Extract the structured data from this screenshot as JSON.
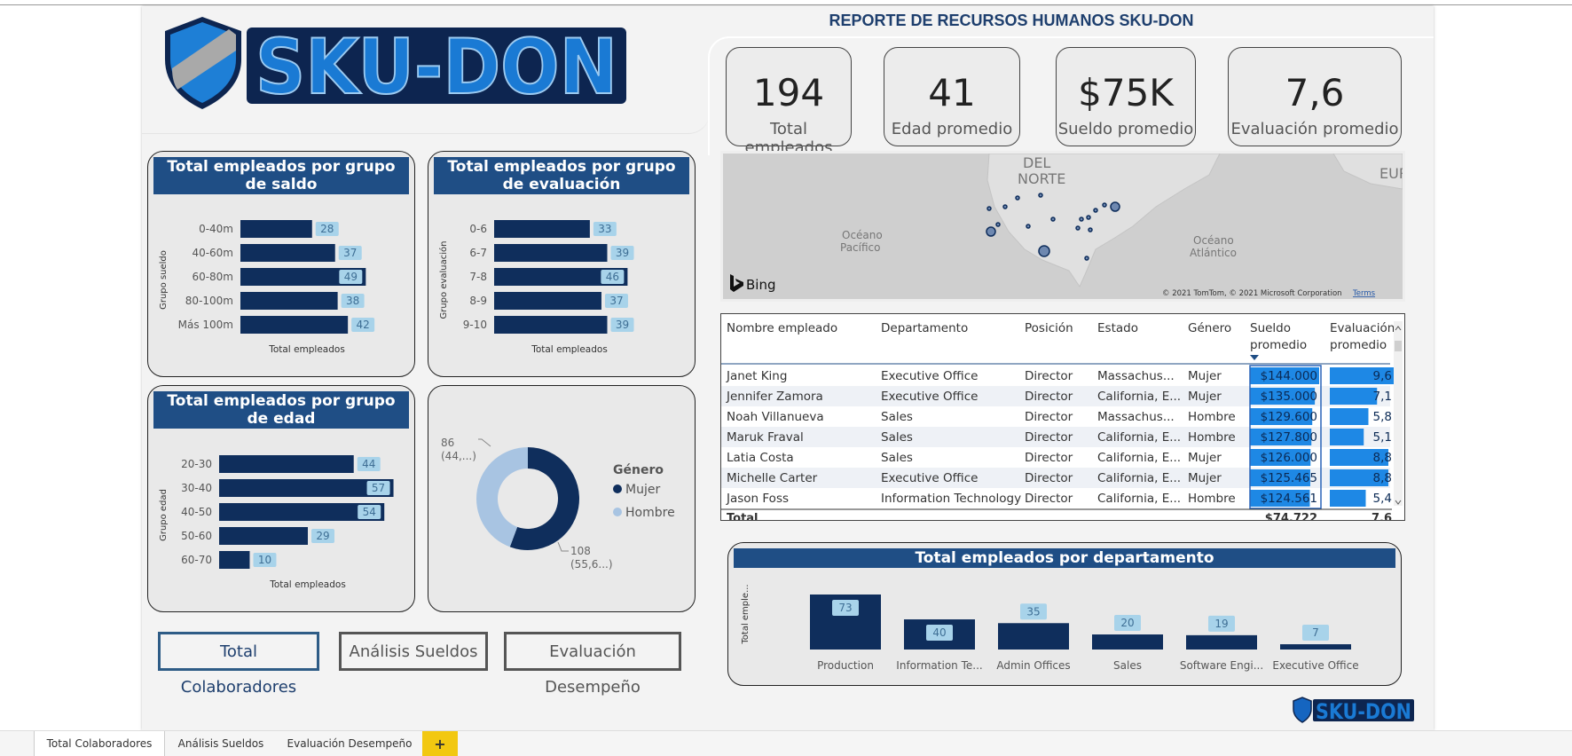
{
  "report": {
    "title": "REPORTE DE RECURSOS HUMANOS SKU-DON",
    "logo_text": "SKU-DON"
  },
  "kpis": [
    {
      "value": "194",
      "label": "Total empleados"
    },
    {
      "value": "41",
      "label": "Edad promedio"
    },
    {
      "value": "$75K",
      "label": "Sueldo promedio"
    },
    {
      "value": "7,6",
      "label": "Evaluación promedio"
    }
  ],
  "chart_data": [
    {
      "type": "bar",
      "orientation": "horizontal",
      "title": "Total empleados por grupo de saldo",
      "ylabel": "Grupo sueldo",
      "xlabel": "Total empleados",
      "categories": [
        "0-40m",
        "40-60m",
        "60-80m",
        "80-100m",
        "Más 100m"
      ],
      "values": [
        28,
        37,
        49,
        38,
        42
      ],
      "color": "#0f2e5c"
    },
    {
      "type": "bar",
      "orientation": "horizontal",
      "title": "Total empleados por grupo de evaluación",
      "ylabel": "Grupo evaluación",
      "xlabel": "Total empleados",
      "categories": [
        "0-6",
        "6-7",
        "7-8",
        "8-9",
        "9-10"
      ],
      "values": [
        33,
        39,
        46,
        37,
        39
      ],
      "color": "#0f2e5c"
    },
    {
      "type": "bar",
      "orientation": "horizontal",
      "title": "Total empleados por grupo de edad",
      "ylabel": "Grupo edad",
      "xlabel": "Total empleados",
      "categories": [
        "20-30",
        "30-40",
        "40-50",
        "50-60",
        "60-70"
      ],
      "values": [
        44,
        57,
        54,
        29,
        10
      ],
      "color": "#0f2e5c"
    },
    {
      "type": "pie",
      "donut": true,
      "legend_title": "Género",
      "legend_position": "right",
      "categories": [
        "Mujer",
        "Hombre"
      ],
      "values": [
        108,
        86
      ],
      "labels": [
        "108\n(55,6...)",
        "86\n(44,...)"
      ],
      "colors": [
        "#0f2e5c",
        "#a8c4e2"
      ]
    },
    {
      "type": "bar",
      "orientation": "vertical",
      "title": "Total empleados por departamento",
      "ylabel": "Total emple...",
      "categories": [
        "Production",
        "Information Te...",
        "Admin Offices",
        "Sales",
        "Software Engi...",
        "Executive Office"
      ],
      "values": [
        73,
        40,
        35,
        20,
        19,
        7
      ],
      "color": "#0f2e5c"
    }
  ],
  "map": {
    "labels": [
      "DEL",
      "NORTE",
      "Océano",
      "Pacífico",
      "Océano",
      "Atlántico",
      "EUR"
    ],
    "attribution": "© 2021 TomTom, © 2021 Microsoft Corporation",
    "terms": "Terms",
    "provider": "Bing"
  },
  "table": {
    "headers": [
      "Nombre empleado",
      "Departamento",
      "Posición",
      "Estado",
      "Género",
      "Sueldo promedio",
      "Evaluación promedio"
    ],
    "rows": [
      [
        "Janet King",
        "Executive Office",
        "Director",
        "Massachus...",
        "Mujer",
        "$144.000",
        "9,6"
      ],
      [
        "Jennifer Zamora",
        "Executive Office",
        "Director",
        "California, E...",
        "Mujer",
        "$135.000",
        "7,1"
      ],
      [
        "Noah Villanueva",
        "Sales",
        "Director",
        "Massachus...",
        "Hombre",
        "$129.600",
        "5,8"
      ],
      [
        "Maruk Fraval",
        "Sales",
        "Director",
        "California, E...",
        "Hombre",
        "$127.800",
        "5,1"
      ],
      [
        "Latia Costa",
        "Sales",
        "Director",
        "California, E...",
        "Mujer",
        "$126.000",
        "8,8"
      ],
      [
        "Michelle Carter",
        "Executive Office",
        "Director",
        "California, E...",
        "Mujer",
        "$125.465",
        "8,8"
      ],
      [
        "Jason Foss",
        "Information Technology",
        "Director",
        "California, E...",
        "Hombre",
        "$124.561",
        "5,4"
      ]
    ],
    "salary_values": [
      144000,
      135000,
      129600,
      127800,
      126000,
      125465,
      124561
    ],
    "eval_values": [
      9.6,
      7.1,
      5.8,
      5.1,
      8.8,
      8.8,
      5.4
    ],
    "total_label": "Total",
    "total_salary": "$74.722",
    "total_eval": "7,6"
  },
  "nav_buttons": [
    "Total Colaboradores",
    "Análisis Sueldos",
    "Evaluación Desempeño"
  ],
  "tabs": [
    "Total Colaboradores",
    "Análisis Sueldos",
    "Evaluación Desempeño"
  ],
  "add_tab_label": "+",
  "colors": {
    "dark_blue": "#0f2e5c",
    "title_bar": "#1f4e85",
    "label_bg": "#a8d3ea",
    "table_bar": "#1e88e5",
    "logo_blue": "#1565c0"
  }
}
